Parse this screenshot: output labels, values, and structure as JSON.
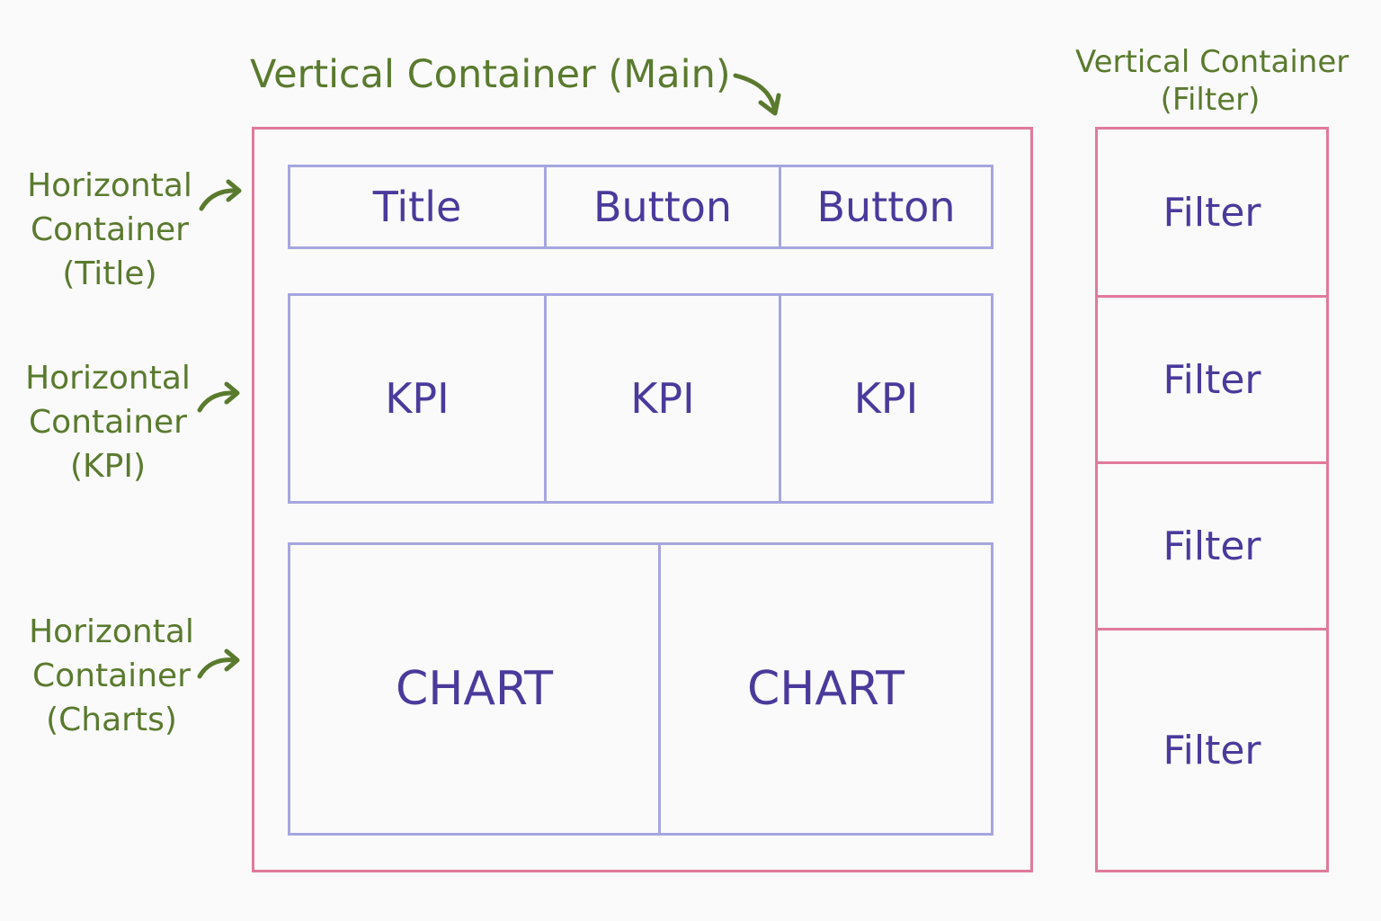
{
  "main_container": {
    "label": "Vertical Container (Main)",
    "title_row": {
      "label_lines": [
        "Horizontal",
        "Container",
        "(Title)"
      ],
      "cells": [
        "Title",
        "Button",
        "Button"
      ]
    },
    "kpi_row": {
      "label_lines": [
        "Horizontal",
        "Container",
        "(KPI)"
      ],
      "cells": [
        "KPI",
        "KPI",
        "KPI"
      ]
    },
    "chart_row": {
      "label_lines": [
        "Horizontal",
        "Container",
        "(Charts)"
      ],
      "cells": [
        "CHART",
        "CHART"
      ]
    }
  },
  "filter_container": {
    "label_lines": [
      "Vertical Container",
      "(Filter)"
    ],
    "cells": [
      "Filter",
      "Filter",
      "Filter",
      "Filter"
    ]
  },
  "colors": {
    "label_green": "#5a7a2e",
    "vertical_container_border": "#e07a9b",
    "horizontal_container_border": "#a6a6e0",
    "cell_text": "#4b3a9c"
  }
}
